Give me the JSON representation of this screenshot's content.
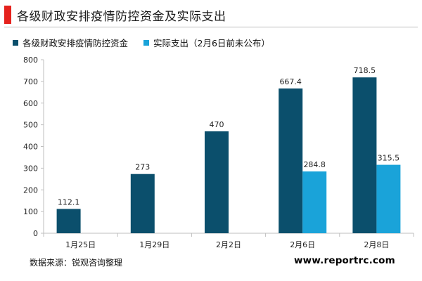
{
  "header": {
    "title": "各级财政安排疫情防控资金及实际支出"
  },
  "footer": {
    "source": "数据来源：锐观咨询整理",
    "site": "www.reportrc.com"
  },
  "colors": {
    "accent": "#e5221d",
    "series1": "#0b4f6c",
    "series2": "#1aa3d9"
  },
  "chart_data": {
    "type": "bar",
    "title": "各级财政安排疫情防控资金及实际支出",
    "categories": [
      "1月25日",
      "1月29日",
      "2月2日",
      "2月6日",
      "2月8日"
    ],
    "series": [
      {
        "name": "各级财政安排疫情防控资金",
        "values": [
          112.1,
          273,
          470,
          667.4,
          718.5
        ],
        "color": "#0b4f6c"
      },
      {
        "name": "实际支出（2月6日前未公布）",
        "values": [
          null,
          null,
          null,
          284.8,
          315.5
        ],
        "color": "#1aa3d9"
      }
    ],
    "yticks": [
      "0",
      "100",
      "200",
      "300",
      "400",
      "500",
      "600",
      "700",
      "800"
    ],
    "ylim": [
      0,
      800
    ],
    "grid": false,
    "legend_position": "top-left"
  }
}
